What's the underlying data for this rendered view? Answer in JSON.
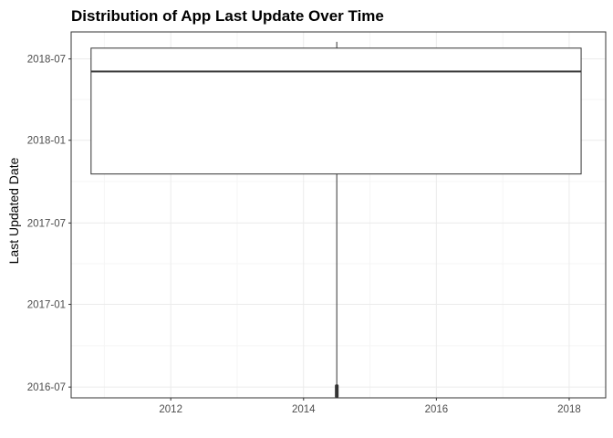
{
  "chart_data": {
    "type": "boxplot",
    "title": "Distribution of App Last Update Over Time",
    "xlabel": "",
    "ylabel": "Last Updated Date",
    "x_ticks": [
      "2012",
      "2014",
      "2016",
      "2018"
    ],
    "y_ticks": [
      "2016-07",
      "2017-01",
      "2017-07",
      "2018-01",
      "2018-07"
    ],
    "xlim": [
      2010.5,
      2018.55
    ],
    "ylim": [
      "2016-06-07",
      "2018-08-30"
    ],
    "box": {
      "x_start": 2010.8,
      "x_end": 2018.18,
      "x_center": 2014.5,
      "min": "2016-06-07",
      "q1": "2017-10-18",
      "median": "2018-06-03",
      "q3": "2018-07-25",
      "max": "2018-08-08",
      "dense_outliers_from": "2016-06-07",
      "dense_outliers_to": "2016-07-07"
    },
    "grid": true,
    "theme": "bw"
  },
  "colors": {
    "background": "#ffffff",
    "grid_major": "#ebebeb",
    "grid_minor": "#f5f5f5",
    "panel_border": "#333333",
    "box_line": "#333333"
  }
}
